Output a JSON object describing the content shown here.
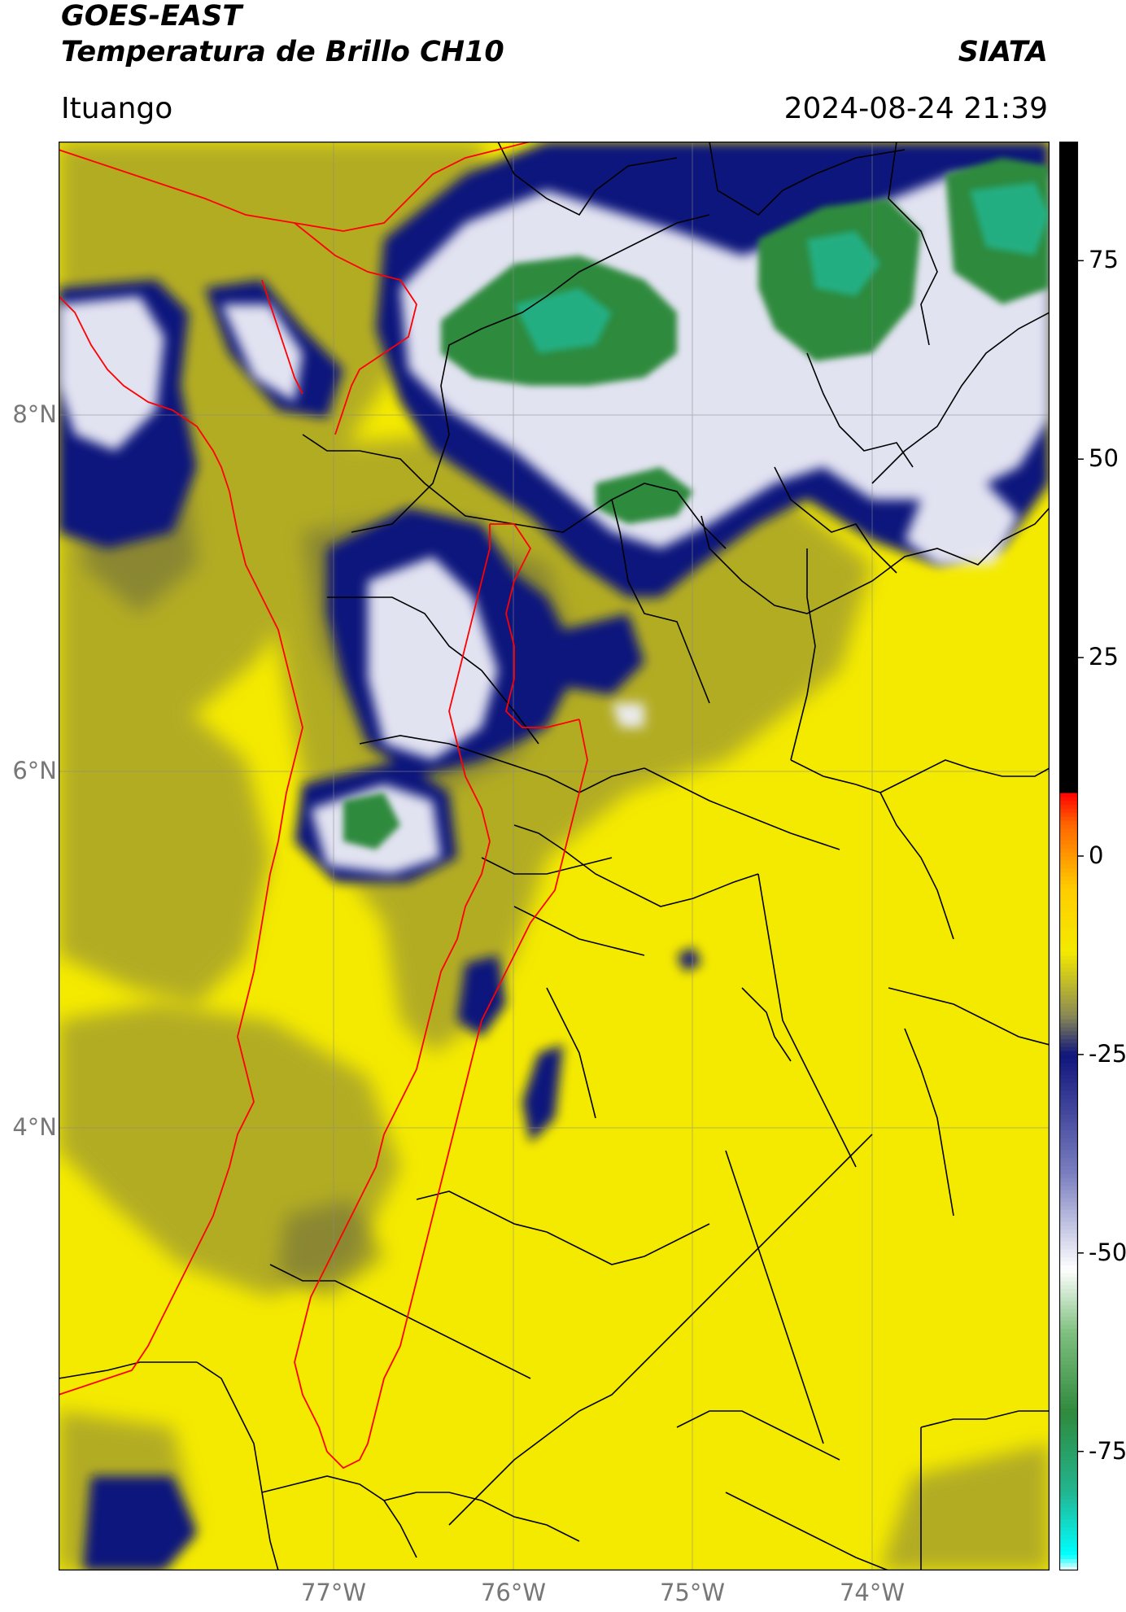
{
  "header": {
    "satellite": "GOES-EAST",
    "product": "Temperatura de Brillo CH10",
    "brand": "SIATA",
    "location": "Ituango",
    "datetime": "2024-08-24 21:39"
  },
  "map": {
    "lat_ticks": [
      "8°N",
      "6°N",
      "4°N"
    ],
    "lon_ticks": [
      "77°W",
      "76°W",
      "75°W",
      "74°W"
    ],
    "lon_range": [
      -78.55,
      -73.0
    ],
    "lat_range": [
      1.95,
      9.55
    ],
    "gridlines": true,
    "colors": {
      "yellow": "#f4ea00",
      "olive": "#a7a22c",
      "navy": "#1a1f86",
      "white": "#f2f2f2",
      "green": "#2f8a3d",
      "teal": "#22b58f",
      "department_border": "#ff0000",
      "municipal_border": "#000000"
    }
  },
  "colorbar": {
    "range": [
      -90,
      90
    ],
    "labels": [
      "75",
      "50",
      "25",
      "0",
      "-25",
      "-50",
      "-75"
    ],
    "label_values": [
      75,
      50,
      25,
      0,
      -25,
      -50,
      -75
    ],
    "stops": [
      {
        "v": -90,
        "c": "#ffffff"
      },
      {
        "v": -88,
        "c": "#00ffff"
      },
      {
        "v": -80,
        "c": "#22b58f"
      },
      {
        "v": -70,
        "c": "#2f8a3d"
      },
      {
        "v": -60,
        "c": "#7fbf7f"
      },
      {
        "v": -52,
        "c": "#ffffff"
      },
      {
        "v": -40,
        "c": "#7b7fc0"
      },
      {
        "v": -25,
        "c": "#10157c"
      },
      {
        "v": -20,
        "c": "#8a8a55"
      },
      {
        "v": -12,
        "c": "#f4ea00"
      },
      {
        "v": -4,
        "c": "#ffcc00"
      },
      {
        "v": 4,
        "c": "#ff6600"
      },
      {
        "v": 8,
        "c": "#ff0000"
      },
      {
        "v": 8.01,
        "c": "#000000"
      },
      {
        "v": 90,
        "c": "#000000"
      }
    ]
  }
}
